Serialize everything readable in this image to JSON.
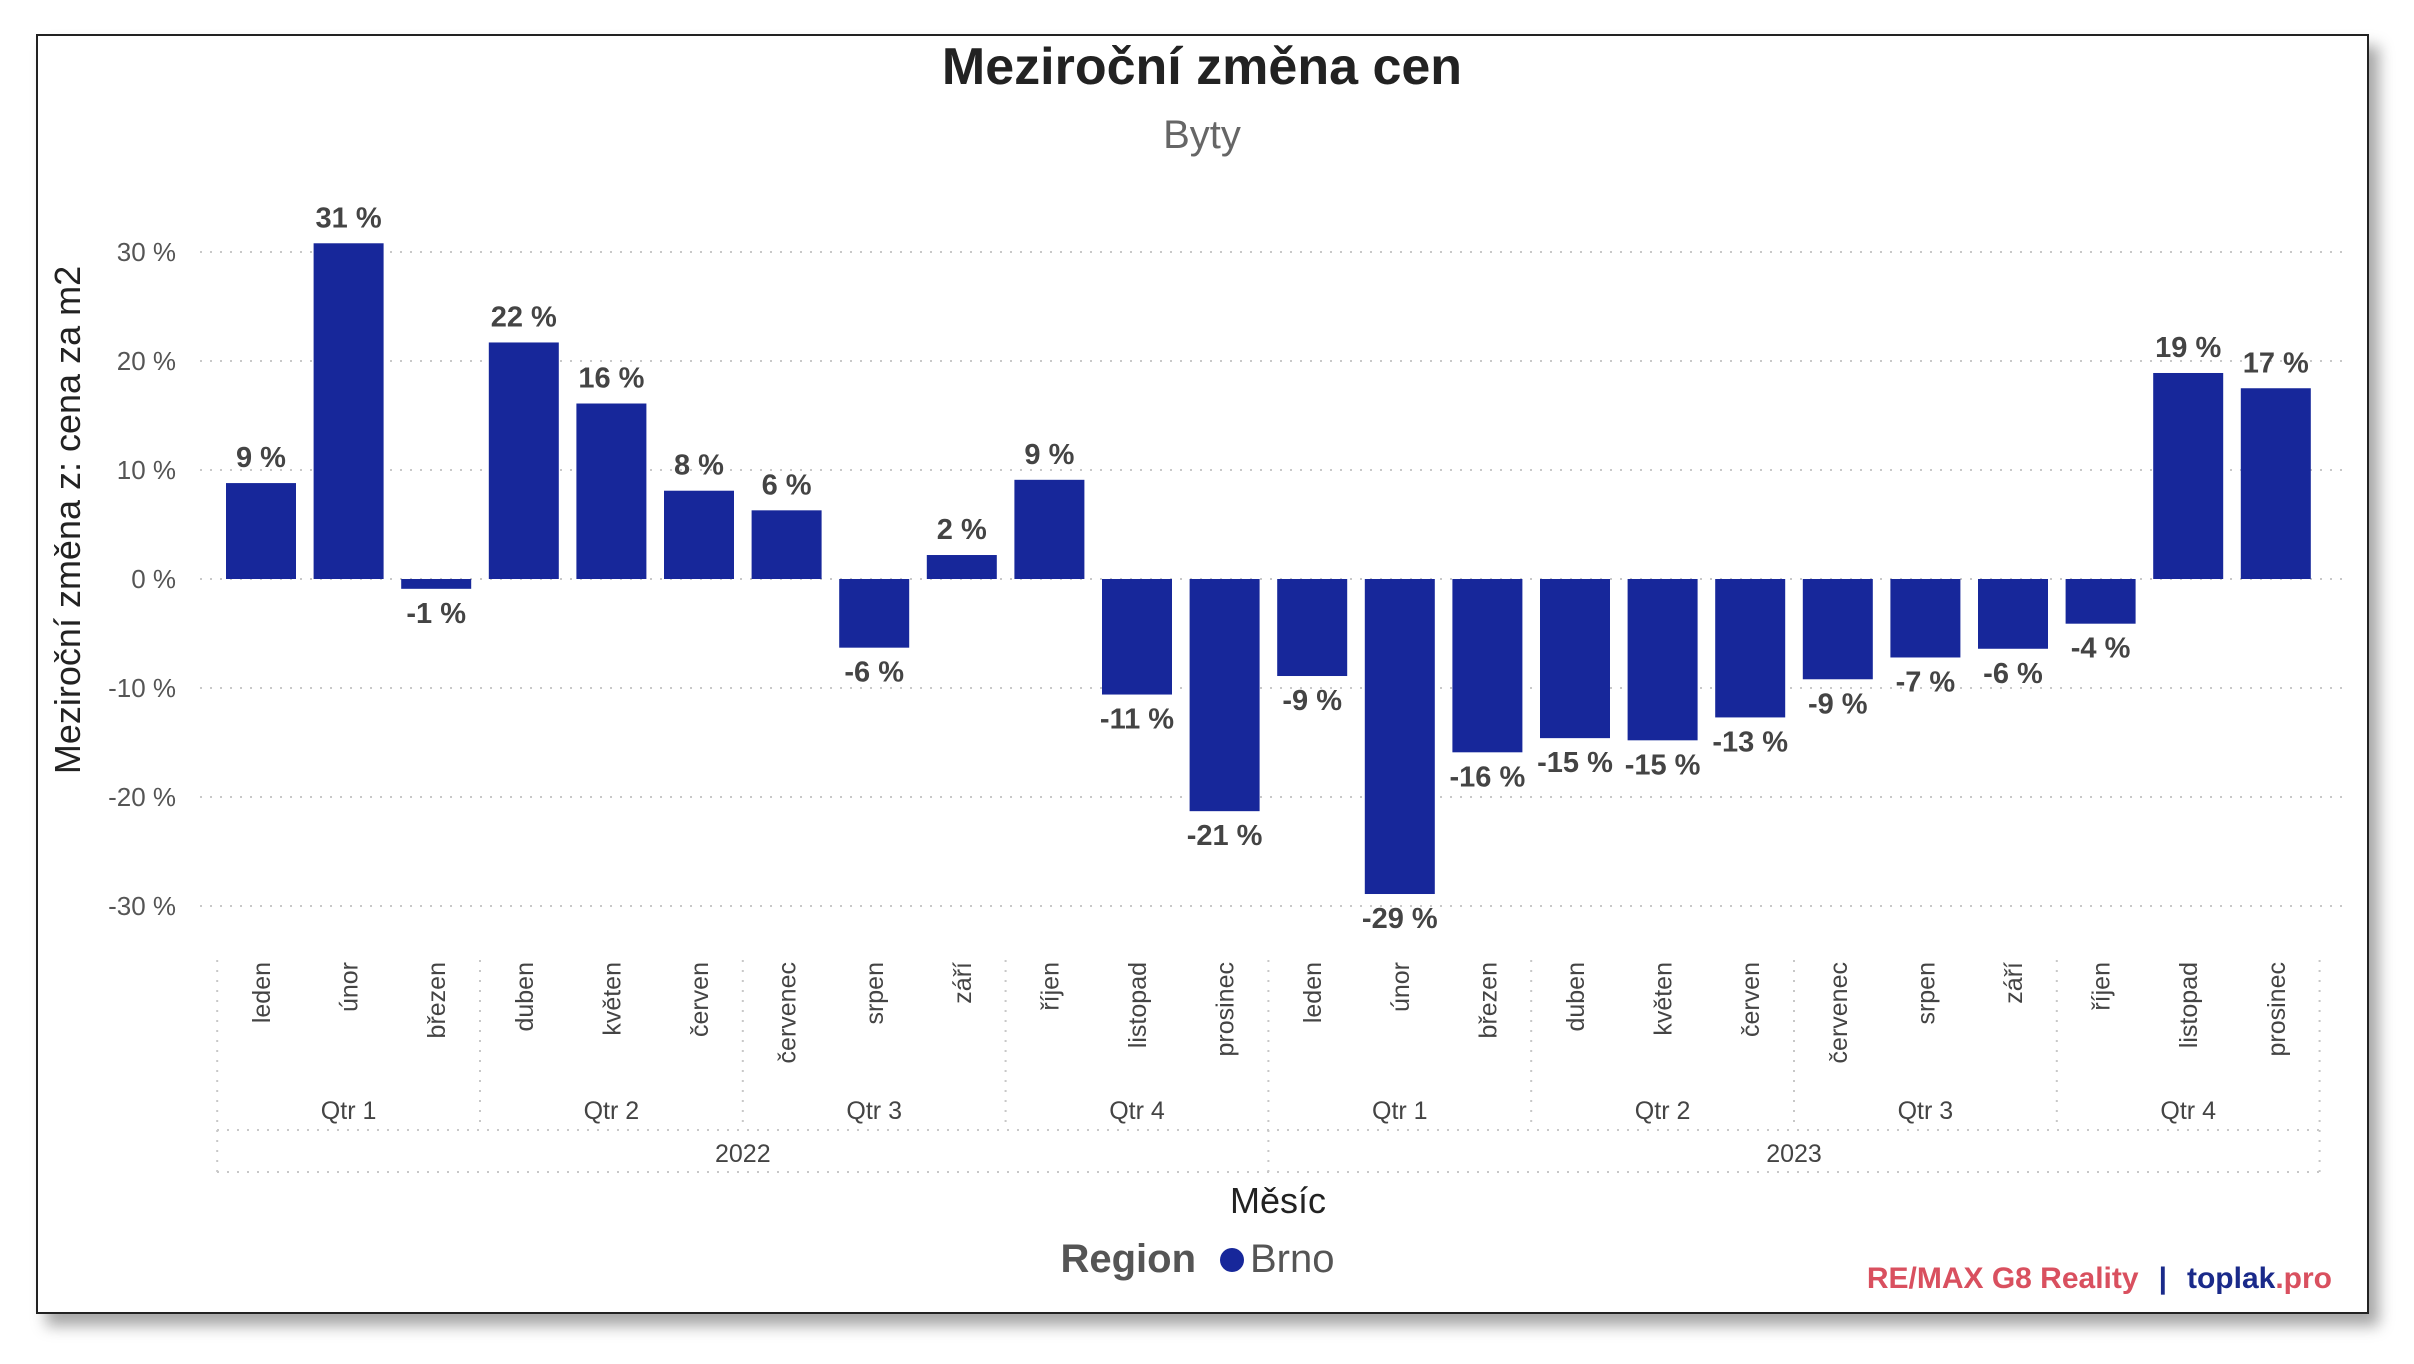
{
  "chart_data": {
    "type": "bar",
    "title": "Meziroční změna cen",
    "subtitle": "Byty",
    "xlabel": "Měsíc",
    "ylabel": "Meziroční změna z: cena za m2",
    "ylim": [
      -30,
      30
    ],
    "yticks": [
      30,
      20,
      10,
      0,
      -10,
      -20,
      -30
    ],
    "ytick_labels": [
      "30 %",
      "20 %",
      "10 %",
      "0 %",
      "-10 %",
      "-20 %",
      "-30 %"
    ],
    "grid": true,
    "bar_color": "#17279a",
    "categories": [
      "leden",
      "únor",
      "březen",
      "duben",
      "květen",
      "červen",
      "červenec",
      "srpen",
      "září",
      "říjen",
      "listopad",
      "prosinec",
      "leden",
      "únor",
      "březen",
      "duben",
      "květen",
      "červen",
      "červenec",
      "srpen",
      "září",
      "říjen",
      "listopad",
      "prosinec"
    ],
    "values": [
      8.8,
      30.8,
      -0.9,
      21.7,
      16.1,
      8.1,
      6.3,
      -6.3,
      2.2,
      9.1,
      -10.6,
      -21.3,
      -8.9,
      -28.9,
      -15.9,
      -14.6,
      -14.8,
      -12.7,
      -9.2,
      -7.2,
      -6.4,
      -4.1,
      18.9,
      17.5
    ],
    "data_labels": [
      "9 %",
      "31 %",
      "-1 %",
      "22 %",
      "16 %",
      "8 %",
      "6 %",
      "-6 %",
      "2 %",
      "9 %",
      "-11 %",
      "-21 %",
      "-9 %",
      "-29 %",
      "-16 %",
      "-15 %",
      "-15 %",
      "-13 %",
      "-9 %",
      "-7 %",
      "-6 %",
      "-4 %",
      "19 %",
      "17 %"
    ],
    "quarters": [
      "Qtr 1",
      "Qtr 2",
      "Qtr 3",
      "Qtr 4",
      "Qtr 1",
      "Qtr 2",
      "Qtr 3",
      "Qtr 4"
    ],
    "years": [
      "2022",
      "2023"
    ],
    "series": [
      {
        "name": "Brno"
      }
    ],
    "legend": {
      "title": "Region",
      "position": "bottom-center"
    }
  },
  "branding": {
    "remax": "RE/MAX G8 Reality",
    "separator": "|",
    "site_name": "toplak",
    "site_tld": ".pro"
  }
}
